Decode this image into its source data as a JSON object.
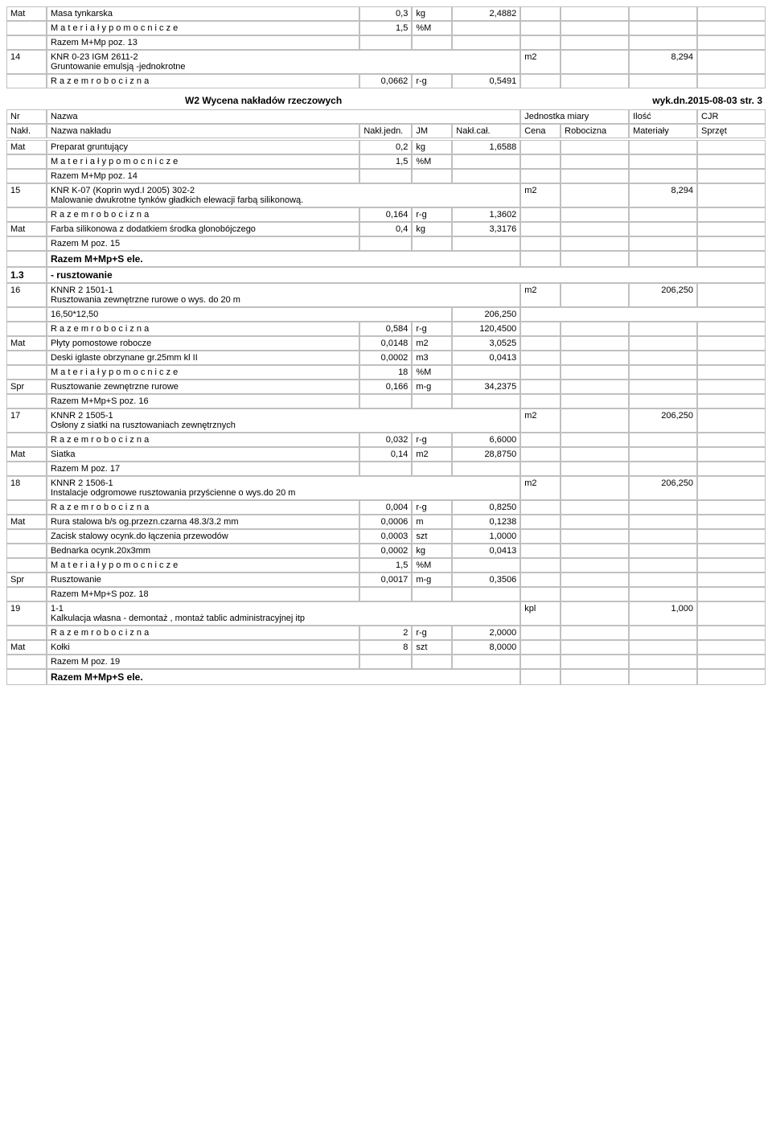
{
  "page_title_center": "W2 Wycena nakładów rzeczowych",
  "page_title_right": "wyk.dn.2015-08-03    str. 3",
  "header": {
    "nr": "Nr",
    "nazwa": "Nazwa",
    "jedn": "Jednostka miary",
    "ilosc": "Ilość",
    "cjr": "CJR",
    "nakl": "Nakł.",
    "nazwa_nakladu": "Nazwa nakładu",
    "nakl_jedn": "Nakł.jedn.",
    "jm": "JM",
    "nakl_cal": "Nakł.cał.",
    "cena": "Cena",
    "robocizna": "Robocizna",
    "materialy": "Materiały",
    "sprzet": "Sprzęt"
  },
  "rows_top": [
    {
      "n": "Mat",
      "desc": "Masa tynkarska",
      "v1": "0,3",
      "u1": "kg",
      "v2": "2,4882"
    },
    {
      "n": "",
      "desc": "M a t e r i a ł y   p o m o c n i c z e",
      "v1": "1,5",
      "u1": "%M",
      "v2": ""
    },
    {
      "n": "",
      "desc": "Razem M+Mp poz. 13",
      "v1": "",
      "u1": "",
      "v2": ""
    }
  ],
  "item14": {
    "n": "14",
    "desc": "KNR 0-23 IGM  2611-2\nGruntowanie emulsją -jednokrotne",
    "unit": "m2",
    "qty": "8,294",
    "rows": [
      {
        "n": "",
        "desc": "R a z e m  r o b o c i z n a",
        "v1": "0,0662",
        "u1": "r-g",
        "v2": "0,5491"
      }
    ]
  },
  "rows_after14": [
    {
      "n": "Mat",
      "desc": "Preparat gruntujący",
      "v1": "0,2",
      "u1": "kg",
      "v2": "1,6588"
    },
    {
      "n": "",
      "desc": "M a t e r i a ł y   p o m o c n i c z e",
      "v1": "1,5",
      "u1": "%M",
      "v2": ""
    },
    {
      "n": "",
      "desc": "Razem M+Mp poz. 14",
      "v1": "",
      "u1": "",
      "v2": ""
    }
  ],
  "item15": {
    "n": "15",
    "desc": "KNR K-07 (Koprin wyd.I 2005) 302-2\nMalowanie dwukrotne tynków gładkich elewacji farbą silikonową.",
    "unit": "m2",
    "qty": "8,294",
    "rows": [
      {
        "n": "",
        "desc": "R a z e m  r o b o c i z n a",
        "v1": "0,164",
        "u1": "r-g",
        "v2": "1,3602"
      },
      {
        "n": "Mat",
        "desc": "Farba silikonowa z dodatkiem środka glonobójczego",
        "v1": "0,4",
        "u1": "kg",
        "v2": "3,3176"
      },
      {
        "n": "",
        "desc": "Razem M poz. 15",
        "v1": "",
        "u1": "",
        "v2": ""
      }
    ]
  },
  "section13": {
    "sum": "Razem M+Mp+S ele.",
    "num": "1.3",
    "name": "- rusztowanie"
  },
  "item16": {
    "n": "16",
    "desc": "KNNR 2  1501-1\nRusztowania zewnętrzne rurowe o wys. do 20 m",
    "unit": "m2",
    "qty": "206,250",
    "calc": "16,50*12,50",
    "calc_res": "206,250",
    "rows": [
      {
        "n": "",
        "desc": "R a z e m  r o b o c i z n a",
        "v1": "0,584",
        "u1": "r-g",
        "v2": "120,4500"
      },
      {
        "n": "Mat",
        "desc": "Płyty pomostowe robocze",
        "v1": "0,0148",
        "u1": "m2",
        "v2": "3,0525"
      },
      {
        "n": "",
        "desc": "Deski iglaste obrzynane gr.25mm kl II",
        "v1": "0,0002",
        "u1": "m3",
        "v2": "0,0413"
      },
      {
        "n": "",
        "desc": "M a t e r i a ł y   p o m o c n i c z e",
        "v1": "18",
        "u1": "%M",
        "v2": ""
      },
      {
        "n": "Spr",
        "desc": "Rusztowanie zewnętrzne rurowe",
        "v1": "0,166",
        "u1": "m-g",
        "v2": "34,2375"
      },
      {
        "n": "",
        "desc": "Razem M+Mp+S poz. 16",
        "v1": "",
        "u1": "",
        "v2": ""
      }
    ]
  },
  "item17": {
    "n": "17",
    "desc": "KNNR 2  1505-1\nOsłony z siatki na rusztowaniach zewnętrznych",
    "unit": "m2",
    "qty": "206,250",
    "rows": [
      {
        "n": "",
        "desc": "R a z e m  r o b o c i z n a",
        "v1": "0,032",
        "u1": "r-g",
        "v2": "6,6000"
      },
      {
        "n": "Mat",
        "desc": "Siatka",
        "v1": "0,14",
        "u1": "m2",
        "v2": "28,8750"
      },
      {
        "n": "",
        "desc": "Razem M poz. 17",
        "v1": "",
        "u1": "",
        "v2": ""
      }
    ]
  },
  "item18": {
    "n": "18",
    "desc": "KNNR 2  1506-1\nInstalacje odgromowe rusztowania przyścienne o wys.do 20 m",
    "unit": "m2",
    "qty": "206,250",
    "rows": [
      {
        "n": "",
        "desc": "R a z e m  r o b o c i z n a",
        "v1": "0,004",
        "u1": "r-g",
        "v2": "0,8250"
      },
      {
        "n": "Mat",
        "desc": "Rura stalowa b/s og.przezn.czarna 48.3/3.2 mm",
        "v1": "0,0006",
        "u1": "m",
        "v2": "0,1238"
      },
      {
        "n": "",
        "desc": "Zacisk stalowy ocynk.do łączenia przewodów",
        "v1": "0,0003",
        "u1": "szt",
        "v2": "1,0000"
      },
      {
        "n": "",
        "desc": "Bednarka ocynk.20x3mm",
        "v1": "0,0002",
        "u1": "kg",
        "v2": "0,0413"
      },
      {
        "n": "",
        "desc": "M a t e r i a ł y   p o m o c n i c z e",
        "v1": "1,5",
        "u1": "%M",
        "v2": ""
      },
      {
        "n": "Spr",
        "desc": "Rusztowanie",
        "v1": "0,0017",
        "u1": "m-g",
        "v2": "0,3506"
      },
      {
        "n": "",
        "desc": "Razem M+Mp+S poz. 18",
        "v1": "",
        "u1": "",
        "v2": ""
      }
    ]
  },
  "item19": {
    "n": "19",
    "desc": "1-1\nKalkulacja własna - demontaż , montaż tablic administracyjnej itp",
    "unit": "kpl",
    "qty": "1,000",
    "rows": [
      {
        "n": "",
        "desc": "R a z e m  r o b o c i z n a",
        "v1": "2",
        "u1": "r-g",
        "v2": "2,0000"
      },
      {
        "n": "Mat",
        "desc": "Kołki",
        "v1": "8",
        "u1": "szt",
        "v2": "8,0000"
      },
      {
        "n": "",
        "desc": "Razem M poz. 19",
        "v1": "",
        "u1": "",
        "v2": ""
      }
    ]
  },
  "final_sum": "Razem M+Mp+S ele."
}
